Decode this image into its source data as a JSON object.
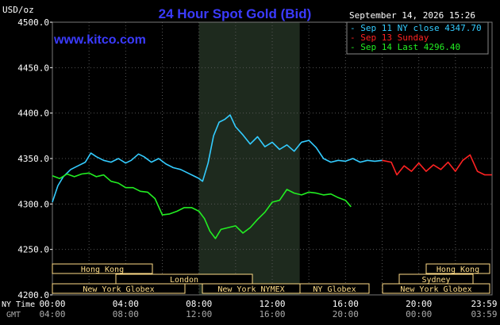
{
  "header": {
    "units": "USD/oz",
    "title": "24 Hour Spot Gold (Bid)",
    "timestamp": "September 14, 2026 15:26",
    "watermark": "www.kitco.com"
  },
  "legend": [
    {
      "text": "- Sep 11 NY close 4347.70",
      "color": "#33ccff"
    },
    {
      "text": "- Sep 13 Sunday",
      "color": "#ff2222"
    },
    {
      "text": "- Sep 14 Last 4296.40",
      "color": "#22ee22"
    }
  ],
  "axis": {
    "y_ticks": [
      "4500.0",
      "4450.0",
      "4400.0",
      "4350.0",
      "4300.0",
      "4250.0",
      "4200.0"
    ],
    "row_ny_label": "NY Time",
    "row_gmt_label": "GMT",
    "ny_ticks": [
      "00:00",
      "04:00",
      "08:00",
      "12:00",
      "16:00",
      "20:00",
      "23:59"
    ],
    "gmt_ticks": [
      "04:00",
      "08:00",
      "12:00",
      "16:00",
      "20:00",
      "00:00",
      "03:59"
    ]
  },
  "sessions": [
    {
      "label": "Hong Kong"
    },
    {
      "label": "London"
    },
    {
      "label": "New York Globex"
    },
    {
      "label": "New York NYMEX"
    },
    {
      "label": "NY Globex"
    },
    {
      "label": "Hong Kong"
    },
    {
      "label": "Sydney"
    },
    {
      "label": "New York Globex"
    }
  ],
  "colors": {
    "background": "#000000",
    "grid": "#555555",
    "text": "#ffffff",
    "title": "#3b3bff",
    "highlight_band": "#1e2a1e",
    "session_box": "#ffdd88"
  },
  "chart_data": {
    "type": "line",
    "title": "24 Hour Spot Gold (Bid)",
    "ylabel": "USD/oz",
    "ylim": [
      4200,
      4500
    ],
    "grid": true,
    "x_unit": "NY hours (0-24)",
    "series": [
      {
        "name": "Sep 11 NY close 4347.70",
        "color": "#33ccff",
        "x": [
          0,
          0.3,
          0.6,
          1.0,
          1.4,
          1.8,
          2.1,
          2.4,
          2.8,
          3.2,
          3.6,
          4.0,
          4.3,
          4.7,
          5.0,
          5.4,
          5.8,
          6.2,
          6.6,
          7.0,
          7.4,
          7.8,
          8.0,
          8.2,
          8.5,
          8.8,
          9.1,
          9.4,
          9.7,
          10.0,
          10.4,
          10.8,
          11.2,
          11.6,
          12.0,
          12.4,
          12.8,
          13.2,
          13.6,
          14.0,
          14.4,
          14.8,
          15.2,
          15.6,
          16.0,
          16.4,
          16.8,
          17.2,
          17.6,
          18.0
        ],
        "y": [
          4302,
          4320,
          4330,
          4338,
          4342,
          4346,
          4356,
          4352,
          4348,
          4346,
          4350,
          4345,
          4348,
          4355,
          4352,
          4346,
          4350,
          4344,
          4340,
          4338,
          4334,
          4330,
          4328,
          4325,
          4345,
          4375,
          4390,
          4393,
          4398,
          4385,
          4376,
          4366,
          4374,
          4363,
          4368,
          4360,
          4365,
          4358,
          4368,
          4370,
          4362,
          4350,
          4346,
          4348,
          4347,
          4350,
          4346,
          4348,
          4347,
          4348
        ]
      },
      {
        "name": "Sep 13 Sunday",
        "color": "#ff2222",
        "x": [
          18.0,
          18.5,
          18.8,
          19.2,
          19.6,
          20.0,
          20.4,
          20.8,
          21.2,
          21.6,
          22.0,
          22.4,
          22.8,
          23.2,
          23.6,
          23.99
        ],
        "y": [
          4348,
          4346,
          4332,
          4342,
          4336,
          4345,
          4336,
          4343,
          4338,
          4346,
          4336,
          4348,
          4354,
          4336,
          4332,
          4332
        ]
      },
      {
        "name": "Sep 14 Last 4296.40",
        "color": "#22ee22",
        "x": [
          0,
          0.4,
          0.8,
          1.2,
          1.6,
          2.0,
          2.4,
          2.8,
          3.2,
          3.6,
          4.0,
          4.4,
          4.8,
          5.2,
          5.6,
          6.0,
          6.4,
          6.8,
          7.2,
          7.6,
          8.0,
          8.3,
          8.6,
          8.9,
          9.2,
          9.6,
          10.0,
          10.4,
          10.8,
          11.2,
          11.6,
          12.0,
          12.4,
          12.8,
          13.2,
          13.6,
          14.0,
          14.4,
          14.8,
          15.2,
          15.6,
          16.0,
          16.3
        ],
        "y": [
          4331,
          4328,
          4333,
          4330,
          4333,
          4334,
          4330,
          4332,
          4325,
          4323,
          4318,
          4318,
          4314,
          4313,
          4306,
          4288,
          4289,
          4292,
          4296,
          4296,
          4292,
          4284,
          4270,
          4262,
          4272,
          4274,
          4276,
          4268,
          4274,
          4283,
          4291,
          4302,
          4304,
          4316,
          4312,
          4310,
          4313,
          4312,
          4310,
          4311,
          4307,
          4304,
          4297
        ]
      }
    ]
  }
}
